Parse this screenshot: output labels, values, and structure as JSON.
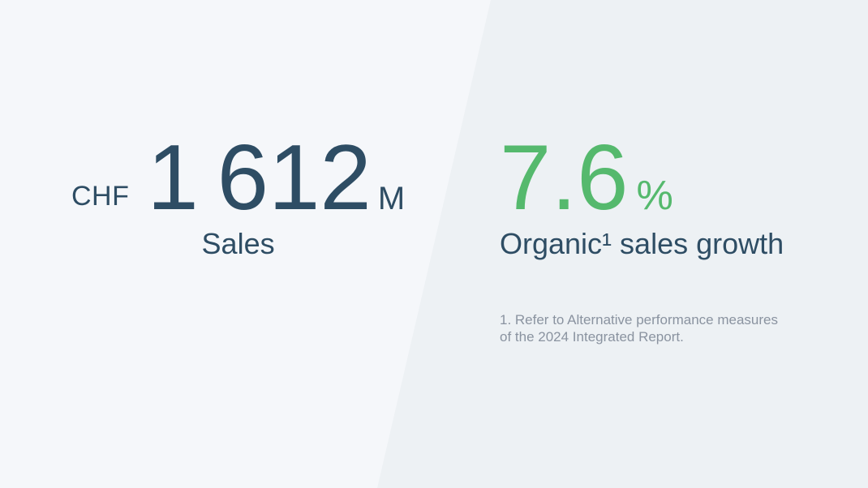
{
  "page": {
    "background_left_color": "#f5f7fa",
    "background_right_color": "#edf1f4"
  },
  "colors": {
    "navy_text": "#2e4d64",
    "green_accent": "#55b96d",
    "footnote_gray": "#8a93a0"
  },
  "left_stat": {
    "currency": "CHF",
    "value": "1 612",
    "unit": "M",
    "label": "Sales"
  },
  "right_stat": {
    "value": "7.6",
    "unit": "%",
    "label": "Organic¹ sales growth",
    "footnote_lines": [
      "1. Refer to Alternative performance measures",
      "of the 2024 Integrated Report."
    ]
  }
}
